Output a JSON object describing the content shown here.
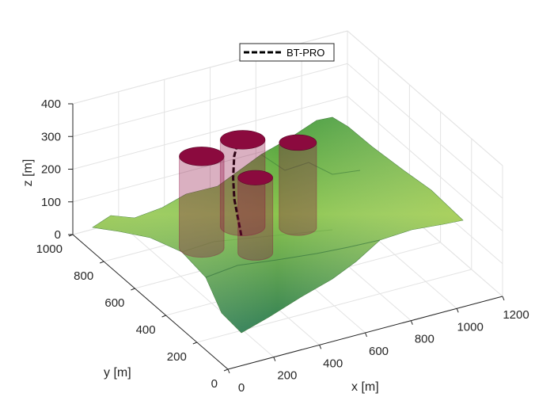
{
  "chart_data": {
    "type": "3d-surface",
    "title": "",
    "xlabel": "x [m]",
    "ylabel": "y [m]",
    "zlabel": "z [m]",
    "xlim": [
      0,
      1200
    ],
    "ylim": [
      0,
      1000
    ],
    "zlim": [
      0,
      400
    ],
    "x_ticks": [
      "0",
      "200",
      "400",
      "600",
      "800",
      "1000",
      "1200"
    ],
    "y_ticks": [
      "0",
      "200",
      "400",
      "600",
      "800",
      "1000"
    ],
    "z_ticks": [
      "0",
      "100",
      "200",
      "300",
      "400"
    ],
    "grid": true,
    "legend": {
      "placement": "top",
      "entries": [
        "BT-PRO"
      ]
    },
    "series": [
      {
        "name": "BT-PRO",
        "style": "dashed",
        "color": "#000000",
        "points": [
          [
            560,
            740,
            0
          ],
          [
            555,
            755,
            50
          ],
          [
            550,
            770,
            100
          ],
          [
            565,
            800,
            150
          ],
          [
            590,
            830,
            200
          ],
          [
            620,
            850,
            230
          ]
        ]
      }
    ],
    "cylinders": [
      {
        "x": 380,
        "y": 730,
        "radius": 90,
        "z_top": 280,
        "color": "#8B0A3E"
      },
      {
        "x": 600,
        "y": 790,
        "radius": 90,
        "z_top": 265,
        "color": "#8B0A3E"
      },
      {
        "x": 540,
        "y": 620,
        "radius": 70,
        "z_top": 230,
        "color": "#8B0A3E"
      },
      {
        "x": 780,
        "y": 700,
        "radius": 75,
        "z_top": 260,
        "color": "#8B0A3E"
      }
    ],
    "surface_colormap": [
      "#1e7a4a",
      "#4da54e",
      "#9ccf55",
      "#d9e36a"
    ]
  }
}
